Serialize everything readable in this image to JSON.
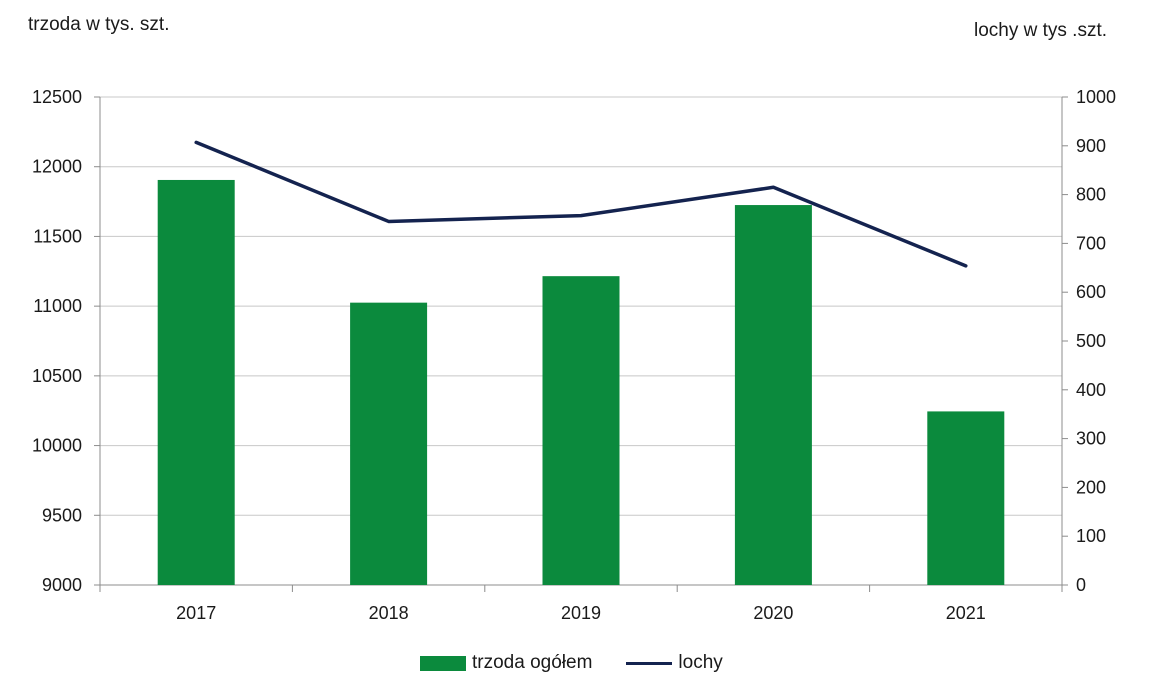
{
  "chart_data": {
    "type": "bar",
    "categories": [
      "2017",
      "2018",
      "2019",
      "2020",
      "2021"
    ],
    "series": [
      {
        "name": "trzoda ogółem",
        "type": "bar",
        "axis": "left",
        "color": "#0b8a3d",
        "values": [
          11905,
          11025,
          11215,
          11725,
          10245
        ]
      },
      {
        "name": "lochy",
        "type": "line",
        "axis": "right",
        "color": "#14234f",
        "values": [
          907,
          745,
          757,
          815,
          654
        ]
      }
    ],
    "left_axis": {
      "label": "trzoda w tys. szt.",
      "range": [
        9000,
        12500
      ],
      "ticks": [
        9000,
        9500,
        10000,
        10500,
        11000,
        11500,
        12000,
        12500
      ]
    },
    "right_axis": {
      "label": "lochy w tys .szt.",
      "range": [
        0,
        1000
      ],
      "ticks": [
        0,
        100,
        200,
        300,
        400,
        500,
        600,
        700,
        800,
        900,
        1000
      ]
    },
    "grid": true,
    "legend_position": "bottom"
  }
}
